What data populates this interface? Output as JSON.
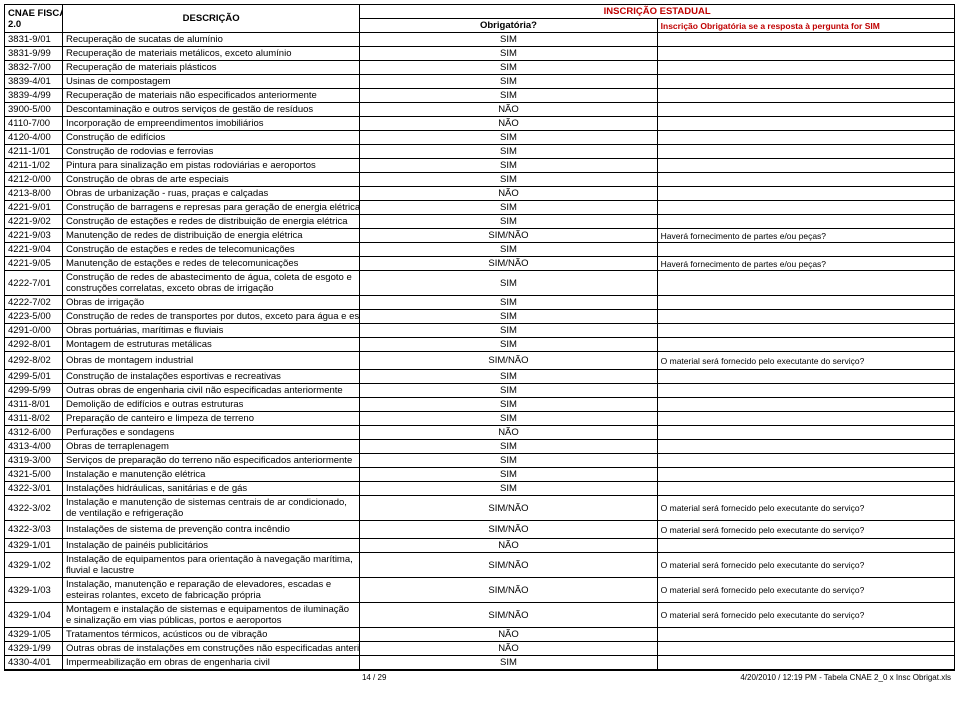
{
  "header": {
    "colA_line1": "CNAE FISCAL",
    "colA_line2": "2.0",
    "colB": "DESCRIÇÃO",
    "colC": "Obrigatória?",
    "insc_top": "INSCRIÇÃO ESTADUAL",
    "insc_sub": "Inscrição Obrigatória se a resposta à pergunta for SIM"
  },
  "rows": [
    {
      "code": "3831-9/01",
      "desc": "Recuperação de sucatas de alumínio",
      "ob": "SIM",
      "q": ""
    },
    {
      "code": "3831-9/99",
      "desc": "Recuperação de materiais metálicos, exceto alumínio",
      "ob": "SIM",
      "q": ""
    },
    {
      "code": "3832-7/00",
      "desc": "Recuperação de materiais plásticos",
      "ob": "SIM",
      "q": ""
    },
    {
      "code": "3839-4/01",
      "desc": "Usinas de compostagem",
      "ob": "SIM",
      "q": ""
    },
    {
      "code": "3839-4/99",
      "desc": "Recuperação de materiais não especificados anteriormente",
      "ob": "SIM",
      "q": ""
    },
    {
      "code": "3900-5/00",
      "desc": "Descontaminação e outros serviços de gestão de resíduos",
      "ob": "NÃO",
      "q": ""
    },
    {
      "code": "4110-7/00",
      "desc": "Incorporação de empreendimentos imobiliários",
      "ob": "NÃO",
      "q": ""
    },
    {
      "code": "4120-4/00",
      "desc": "Construção de edifícios",
      "ob": "SIM",
      "q": ""
    },
    {
      "code": "4211-1/01",
      "desc": "Construção de rodovias e ferrovias",
      "ob": "SIM",
      "q": ""
    },
    {
      "code": "4211-1/02",
      "desc": "Pintura para sinalização em pistas rodoviárias e aeroportos",
      "ob": "SIM",
      "q": ""
    },
    {
      "code": "4212-0/00",
      "desc": "Construção de obras de arte especiais",
      "ob": "SIM",
      "q": ""
    },
    {
      "code": "4213-8/00",
      "desc": "Obras de urbanização - ruas, praças e calçadas",
      "ob": "NÃO",
      "q": ""
    },
    {
      "code": "4221-9/01",
      "desc": "Construção de barragens e represas para geração de energia elétrica",
      "ob": "SIM",
      "q": ""
    },
    {
      "code": "4221-9/02",
      "desc": "Construção de estações e redes de distribuição de energia elétrica",
      "ob": "SIM",
      "q": ""
    },
    {
      "code": "4221-9/03",
      "desc": "Manutenção de redes de distribuição de energia elétrica",
      "ob": "SIM/NÃO",
      "q": "Haverá fornecimento de partes e/ou peças?"
    },
    {
      "code": "4221-9/04",
      "desc": "Construção de estações e redes de telecomunicações",
      "ob": "SIM",
      "q": ""
    },
    {
      "code": "4221-9/05",
      "desc": "Manutenção de estações e redes de telecomunicações",
      "ob": "SIM/NÃO",
      "q": "Haverá fornecimento de partes e/ou peças?"
    },
    {
      "code": "4222-7/01",
      "desc": "Construção de redes de abastecimento de água, coleta de esgoto e construções correlatas, exceto obras de irrigação",
      "ob": "SIM",
      "q": "",
      "pad": true
    },
    {
      "code": "4222-7/02",
      "desc": "Obras de irrigação",
      "ob": "SIM",
      "q": ""
    },
    {
      "code": "4223-5/00",
      "desc": "Construção de redes de transportes por dutos, exceto para água e esgoto",
      "ob": "SIM",
      "q": ""
    },
    {
      "code": "4291-0/00",
      "desc": "Obras portuárias, marítimas e fluviais",
      "ob": "SIM",
      "q": ""
    },
    {
      "code": "4292-8/01",
      "desc": "Montagem de estruturas metálicas",
      "ob": "SIM",
      "q": ""
    },
    {
      "code": "4292-8/02",
      "desc": "Obras de montagem industrial",
      "ob": "SIM/NÃO",
      "q": "O material será fornecido  pelo executante  do  serviço?",
      "pad": true
    },
    {
      "code": "4299-5/01",
      "desc": "Construção de instalações esportivas e recreativas",
      "ob": "SIM",
      "q": ""
    },
    {
      "code": "4299-5/99",
      "desc": "Outras obras de engenharia civil não especificadas anteriormente",
      "ob": "SIM",
      "q": ""
    },
    {
      "code": "4311-8/01",
      "desc": "Demolição de edifícios e outras estruturas",
      "ob": "SIM",
      "q": ""
    },
    {
      "code": "4311-8/02",
      "desc": "Preparação de canteiro e limpeza de terreno",
      "ob": "SIM",
      "q": ""
    },
    {
      "code": "4312-6/00",
      "desc": "Perfurações e sondagens",
      "ob": "NÃO",
      "q": ""
    },
    {
      "code": "4313-4/00",
      "desc": "Obras de terraplenagem",
      "ob": "SIM",
      "q": ""
    },
    {
      "code": "4319-3/00",
      "desc": "Serviços de preparação do terreno não especificados anteriormente",
      "ob": "SIM",
      "q": ""
    },
    {
      "code": "4321-5/00",
      "desc": "Instalação e manutenção elétrica",
      "ob": "SIM",
      "q": ""
    },
    {
      "code": "4322-3/01",
      "desc": "Instalações hidráulicas, sanitárias e de gás",
      "ob": "SIM",
      "q": ""
    },
    {
      "code": "4322-3/02",
      "desc": "Instalação e manutenção de sistemas centrais de ar condicionado, de ventilação e refrigeração",
      "ob": "SIM/NÃO",
      "q": "O material será fornecido  pelo executante  do  serviço?",
      "pad": true
    },
    {
      "code": "4322-3/03",
      "desc": "Instalações de sistema de prevenção contra incêndio",
      "ob": "SIM/NÃO",
      "q": "O material será fornecido  pelo executante  do  serviço?",
      "pad": true
    },
    {
      "code": "4329-1/01",
      "desc": "Instalação de painéis publicitários",
      "ob": "NÃO",
      "q": ""
    },
    {
      "code": "4329-1/02",
      "desc": "Instalação de equipamentos para orientação à navegação marítima, fluvial e lacustre",
      "ob": "SIM/NÃO",
      "q": "O material será fornecido  pelo executante  do  serviço?",
      "pad": true
    },
    {
      "code": "4329-1/03",
      "desc": "Instalação, manutenção e reparação de elevadores, escadas e esteiras rolantes, exceto de fabricação própria",
      "ob": "SIM/NÃO",
      "q": "O material será fornecido  pelo executante  do  serviço?",
      "pad": true
    },
    {
      "code": "4329-1/04",
      "desc": "Montagem e instalação de sistemas e equipamentos de iluminação e sinalização em vias públicas, portos e aeroportos",
      "ob": "SIM/NÃO",
      "q": "O material será fornecido  pelo executante  do  serviço?",
      "pad": true
    },
    {
      "code": "4329-1/05",
      "desc": "Tratamentos térmicos, acústicos ou de vibração",
      "ob": "NÃO",
      "q": ""
    },
    {
      "code": "4329-1/99",
      "desc": "Outras obras de instalações em construções não especificadas anteriormente",
      "ob": "NÃO",
      "q": ""
    },
    {
      "code": "4330-4/01",
      "desc": "Impermeabilização em obras de engenharia civil",
      "ob": "SIM",
      "q": ""
    }
  ],
  "footer": {
    "page": "14 / 29",
    "ts": "4/20/2010 / 12:19 PM - Tabela CNAE 2_0 x Insc Obrigat.xls"
  }
}
